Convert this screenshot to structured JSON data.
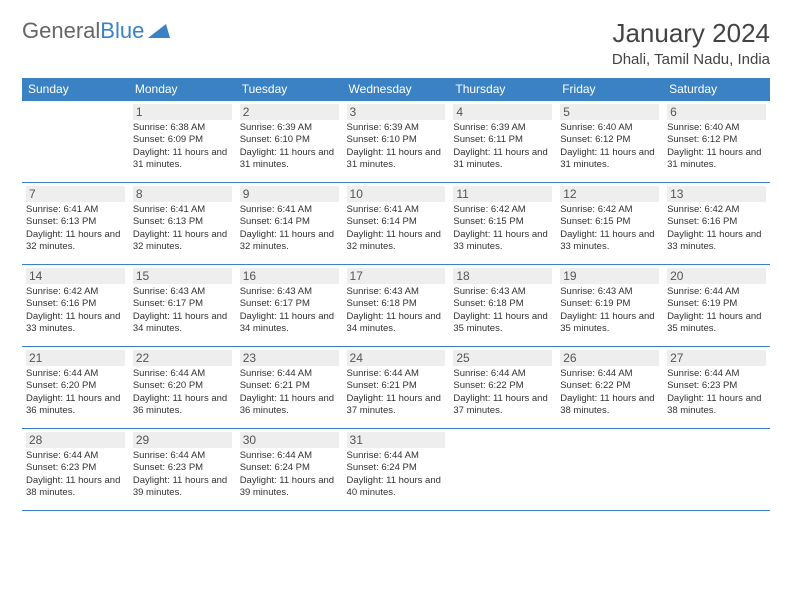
{
  "logo": {
    "text1": "General",
    "text2": "Blue"
  },
  "title": "January 2024",
  "location": "Dhali, Tamil Nadu, India",
  "colors": {
    "header_bg": "#3b82c4",
    "header_text": "#ffffff",
    "daynum_bg": "#eeeeee",
    "border": "#3b82c4"
  },
  "weekdays": [
    "Sunday",
    "Monday",
    "Tuesday",
    "Wednesday",
    "Thursday",
    "Friday",
    "Saturday"
  ],
  "weeks": [
    [
      null,
      {
        "n": "1",
        "sr": "6:38 AM",
        "ss": "6:09 PM",
        "dl": "11 hours and 31 minutes."
      },
      {
        "n": "2",
        "sr": "6:39 AM",
        "ss": "6:10 PM",
        "dl": "11 hours and 31 minutes."
      },
      {
        "n": "3",
        "sr": "6:39 AM",
        "ss": "6:10 PM",
        "dl": "11 hours and 31 minutes."
      },
      {
        "n": "4",
        "sr": "6:39 AM",
        "ss": "6:11 PM",
        "dl": "11 hours and 31 minutes."
      },
      {
        "n": "5",
        "sr": "6:40 AM",
        "ss": "6:12 PM",
        "dl": "11 hours and 31 minutes."
      },
      {
        "n": "6",
        "sr": "6:40 AM",
        "ss": "6:12 PM",
        "dl": "11 hours and 31 minutes."
      }
    ],
    [
      {
        "n": "7",
        "sr": "6:41 AM",
        "ss": "6:13 PM",
        "dl": "11 hours and 32 minutes."
      },
      {
        "n": "8",
        "sr": "6:41 AM",
        "ss": "6:13 PM",
        "dl": "11 hours and 32 minutes."
      },
      {
        "n": "9",
        "sr": "6:41 AM",
        "ss": "6:14 PM",
        "dl": "11 hours and 32 minutes."
      },
      {
        "n": "10",
        "sr": "6:41 AM",
        "ss": "6:14 PM",
        "dl": "11 hours and 32 minutes."
      },
      {
        "n": "11",
        "sr": "6:42 AM",
        "ss": "6:15 PM",
        "dl": "11 hours and 33 minutes."
      },
      {
        "n": "12",
        "sr": "6:42 AM",
        "ss": "6:15 PM",
        "dl": "11 hours and 33 minutes."
      },
      {
        "n": "13",
        "sr": "6:42 AM",
        "ss": "6:16 PM",
        "dl": "11 hours and 33 minutes."
      }
    ],
    [
      {
        "n": "14",
        "sr": "6:42 AM",
        "ss": "6:16 PM",
        "dl": "11 hours and 33 minutes."
      },
      {
        "n": "15",
        "sr": "6:43 AM",
        "ss": "6:17 PM",
        "dl": "11 hours and 34 minutes."
      },
      {
        "n": "16",
        "sr": "6:43 AM",
        "ss": "6:17 PM",
        "dl": "11 hours and 34 minutes."
      },
      {
        "n": "17",
        "sr": "6:43 AM",
        "ss": "6:18 PM",
        "dl": "11 hours and 34 minutes."
      },
      {
        "n": "18",
        "sr": "6:43 AM",
        "ss": "6:18 PM",
        "dl": "11 hours and 35 minutes."
      },
      {
        "n": "19",
        "sr": "6:43 AM",
        "ss": "6:19 PM",
        "dl": "11 hours and 35 minutes."
      },
      {
        "n": "20",
        "sr": "6:44 AM",
        "ss": "6:19 PM",
        "dl": "11 hours and 35 minutes."
      }
    ],
    [
      {
        "n": "21",
        "sr": "6:44 AM",
        "ss": "6:20 PM",
        "dl": "11 hours and 36 minutes."
      },
      {
        "n": "22",
        "sr": "6:44 AM",
        "ss": "6:20 PM",
        "dl": "11 hours and 36 minutes."
      },
      {
        "n": "23",
        "sr": "6:44 AM",
        "ss": "6:21 PM",
        "dl": "11 hours and 36 minutes."
      },
      {
        "n": "24",
        "sr": "6:44 AM",
        "ss": "6:21 PM",
        "dl": "11 hours and 37 minutes."
      },
      {
        "n": "25",
        "sr": "6:44 AM",
        "ss": "6:22 PM",
        "dl": "11 hours and 37 minutes."
      },
      {
        "n": "26",
        "sr": "6:44 AM",
        "ss": "6:22 PM",
        "dl": "11 hours and 38 minutes."
      },
      {
        "n": "27",
        "sr": "6:44 AM",
        "ss": "6:23 PM",
        "dl": "11 hours and 38 minutes."
      }
    ],
    [
      {
        "n": "28",
        "sr": "6:44 AM",
        "ss": "6:23 PM",
        "dl": "11 hours and 38 minutes."
      },
      {
        "n": "29",
        "sr": "6:44 AM",
        "ss": "6:23 PM",
        "dl": "11 hours and 39 minutes."
      },
      {
        "n": "30",
        "sr": "6:44 AM",
        "ss": "6:24 PM",
        "dl": "11 hours and 39 minutes."
      },
      {
        "n": "31",
        "sr": "6:44 AM",
        "ss": "6:24 PM",
        "dl": "11 hours and 40 minutes."
      },
      null,
      null,
      null
    ]
  ],
  "labels": {
    "sunrise": "Sunrise:",
    "sunset": "Sunset:",
    "daylight": "Daylight:"
  }
}
